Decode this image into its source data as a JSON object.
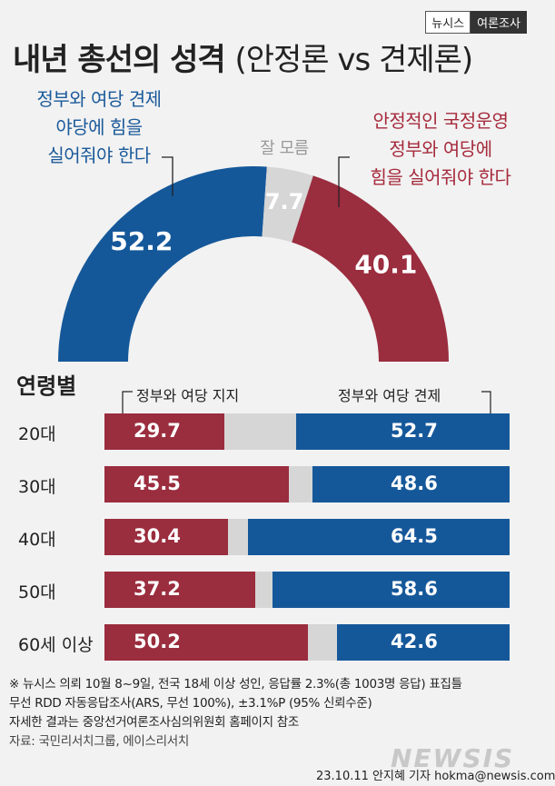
{
  "brand": {
    "name": "뉴시스",
    "section": "여론조사"
  },
  "title": {
    "main": "내년 총선의 성격",
    "sub": "(안정론 vs 견제론)"
  },
  "labels": {
    "conservative_check": [
      "정부와 여당 견제",
      "야당에 힘을",
      "실어줘야 한다"
    ],
    "stability": [
      "안정적인 국정운영",
      "정부와 여당에",
      "힘을 실어줘야 한다"
    ],
    "dont_know": "잘 모름"
  },
  "age_section": {
    "title": "연령별",
    "legend_support": "정부와 여당 지지",
    "legend_check": "정부와 여당 견제"
  },
  "chart_data": [
    {
      "type": "pie",
      "title": "내년 총선의 성격 (안정론 vs 견제론)",
      "shape": "half-donut",
      "slices": [
        {
          "name": "정부와 여당 견제 야당에 힘을 실어줘야 한다",
          "value": 52.2,
          "color": "#15589a"
        },
        {
          "name": "잘 모름",
          "value": 7.7,
          "color": "#d6d6d6"
        },
        {
          "name": "안정적인 국정운영 정부와 여당에 힘을 실어줘야 한다",
          "value": 40.1,
          "color": "#9a2d3e"
        }
      ]
    },
    {
      "type": "bar",
      "title": "연령별",
      "orientation": "horizontal-stacked",
      "categories": [
        "20대",
        "30대",
        "40대",
        "50대",
        "60세 이상"
      ],
      "series": [
        {
          "name": "정부와 여당 지지",
          "values": [
            29.7,
            45.5,
            30.4,
            37.2,
            50.2
          ],
          "color": "#9a2d3e"
        },
        {
          "name": "정부와 여당 견제",
          "values": [
            52.7,
            48.6,
            64.5,
            58.6,
            42.6
          ],
          "color": "#15589a"
        }
      ],
      "xlim": [
        0,
        100
      ]
    }
  ],
  "notes": {
    "line1": "※ 뉴시스 의뢰 10월 8~9일, 전국 18세 이상 성인, 응답률 2.3%(총 1003명 응답) 표집틀",
    "line2": "무선 RDD 자동응답조사(ARS, 무선 100%), ±3.1%P (95% 신뢰수준)",
    "line3": "자세한 결과는 중앙선거여론조사심의위원회 홈페이지 참조",
    "source": "자료: 국민리서치그룹, 에이스리서치"
  },
  "logo": "NEWSIS",
  "credit": "23.10.11 안지혜 기자 hokma@newsis.com"
}
